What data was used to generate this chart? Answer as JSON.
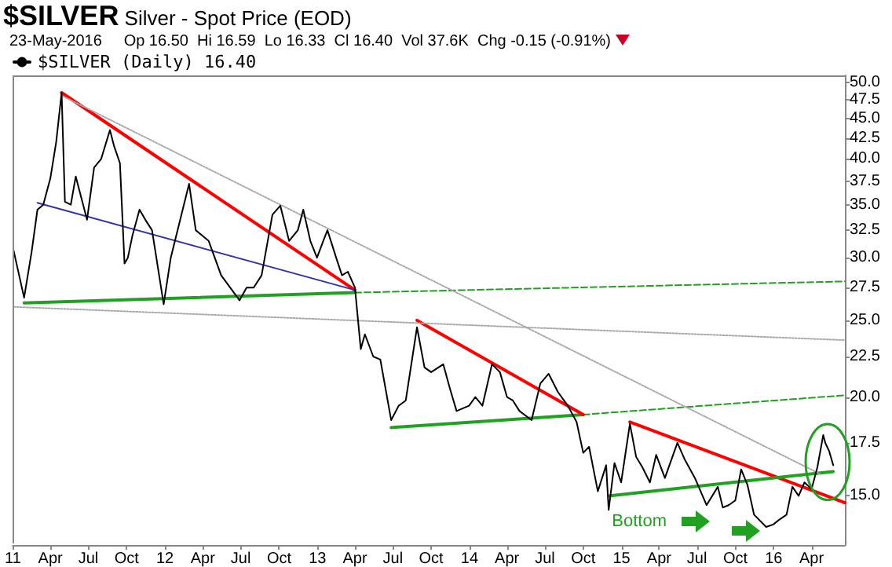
{
  "chart_data": {
    "type": "line",
    "title": "$SILVER Silver - Spot Price (EOD)",
    "subtitle": "23-May-2016     Op 16.50  Hi 16.59  Lo 16.33  Cl 16.40  Vol 37.6K  Chg -0.15 (-0.91%)",
    "log": true,
    "grid": false,
    "legend": "top left",
    "marker": "none",
    "ylim": [
      13.0,
      51
    ],
    "yticks": [
      {
        "value": 15,
        "label": "15.0"
      },
      17.5,
      {
        "value": 20,
        "label": "20.0"
      },
      22.5,
      {
        "value": 25,
        "label": "25.0"
      },
      27.5,
      {
        "value": 30,
        "label": "30.0"
      },
      32.5,
      {
        "value": 35,
        "label": "35.0"
      },
      37.5,
      {
        "value": 40,
        "label": "40.0"
      },
      42.5,
      {
        "value": 45,
        "label": "45.0"
      },
      47.5,
      {
        "value": 50,
        "label": "50.0"
      }
    ],
    "xlim": [
      "2011-01-01",
      "2016-06-20"
    ],
    "xticks": [
      {
        "value": "2011-01-01",
        "label": "11"
      },
      {
        "value": "2011-04-01",
        "label": "Apr"
      },
      {
        "value": "2011-07-01",
        "label": "Jul"
      },
      {
        "value": "2011-10-01",
        "label": "Oct"
      },
      {
        "value": "2012-01-01",
        "label": "12"
      },
      {
        "value": "2012-04-01",
        "label": "Apr"
      },
      {
        "value": "2012-07-01",
        "label": "Jul"
      },
      {
        "value": "2012-10-01",
        "label": "Oct"
      },
      {
        "value": "2013-01-01",
        "label": "13"
      },
      {
        "value": "2013-04-01",
        "label": "Apr"
      },
      {
        "value": "2013-07-01",
        "label": "Jul"
      },
      {
        "value": "2013-10-01",
        "label": "Oct"
      },
      {
        "value": "2014-01-01",
        "label": "14"
      },
      {
        "value": "2014-04-01",
        "label": "Apr"
      },
      {
        "value": "2014-07-01",
        "label": "Jul"
      },
      {
        "value": "2014-10-01",
        "label": "Oct"
      },
      {
        "value": "2015-01-01",
        "label": "15"
      },
      {
        "value": "2015-04-01",
        "label": "Apr"
      },
      {
        "value": "2015-07-01",
        "label": "Jul"
      },
      {
        "value": "2015-10-01",
        "label": "Oct"
      },
      {
        "value": "2016-01-01",
        "label": "16"
      },
      {
        "value": "2016-04-01",
        "label": "Apr"
      }
    ],
    "annotations": [
      "Bottom"
    ],
    "series": [
      {
        "name": "$SILVER (Daily) 16.40",
        "color": "#000000",
        "x": [
          "2011-01-03",
          "2011-01-28",
          "2011-02-15",
          "2011-03-01",
          "2011-03-15",
          "2011-04-01",
          "2011-04-15",
          "2011-04-28",
          "2011-05-06",
          "2011-05-20",
          "2011-06-01",
          "2011-06-28",
          "2011-07-15",
          "2011-08-01",
          "2011-08-22",
          "2011-09-01",
          "2011-09-15",
          "2011-09-26",
          "2011-10-04",
          "2011-10-15",
          "2011-11-01",
          "2011-11-15",
          "2011-12-01",
          "2011-12-29",
          "2012-01-15",
          "2012-02-28",
          "2012-03-15",
          "2012-04-15",
          "2012-05-15",
          "2012-06-28",
          "2012-07-15",
          "2012-08-01",
          "2012-08-20",
          "2012-09-15",
          "2012-10-04",
          "2012-10-25",
          "2012-11-15",
          "2012-11-28",
          "2012-12-15",
          "2012-12-31",
          "2013-01-15",
          "2013-01-25",
          "2013-02-15",
          "2013-03-01",
          "2013-03-15",
          "2013-04-01",
          "2013-04-15",
          "2013-04-25",
          "2013-05-15",
          "2013-06-01",
          "2013-06-27",
          "2013-07-15",
          "2013-08-01",
          "2013-08-28",
          "2013-09-15",
          "2013-10-01",
          "2013-10-30",
          "2013-11-15",
          "2013-12-01",
          "2013-12-31",
          "2014-01-15",
          "2014-02-01",
          "2014-02-24",
          "2014-03-15",
          "2014-04-01",
          "2014-04-15",
          "2014-05-01",
          "2014-05-30",
          "2014-06-20",
          "2014-07-10",
          "2014-08-01",
          "2014-08-25",
          "2014-09-15",
          "2014-10-01",
          "2014-10-15",
          "2014-11-05",
          "2014-11-25",
          "2014-12-01",
          "2014-12-15",
          "2014-12-31",
          "2015-01-21",
          "2015-02-05",
          "2015-02-20",
          "2015-03-10",
          "2015-03-25",
          "2015-04-15",
          "2015-05-15",
          "2015-06-01",
          "2015-06-26",
          "2015-07-24",
          "2015-08-20",
          "2015-09-01",
          "2015-09-15",
          "2015-10-01",
          "2015-10-15",
          "2015-10-30",
          "2015-11-15",
          "2015-12-14",
          "2015-12-31",
          "2016-01-15",
          "2016-02-01",
          "2016-02-15",
          "2016-03-01",
          "2016-03-15",
          "2016-04-01",
          "2016-04-15",
          "2016-04-29",
          "2016-05-04",
          "2016-05-13",
          "2016-05-23"
        ],
        "values": [
          30.6,
          26.7,
          30.5,
          34.5,
          35,
          37.8,
          42,
          48.5,
          35.3,
          35,
          38,
          33.5,
          39,
          40,
          43.5,
          41.5,
          39.5,
          29.5,
          30,
          32,
          34.5,
          33.5,
          32.5,
          26.2,
          30,
          37.2,
          32.5,
          31.5,
          28.5,
          26.5,
          27.5,
          27.5,
          28.5,
          34,
          34.9,
          31.5,
          32.5,
          34.5,
          31.5,
          30,
          31.5,
          32.5,
          30,
          28.5,
          28.8,
          27.5,
          23,
          24,
          22.5,
          22.3,
          18.7,
          19.5,
          19.8,
          24.5,
          21.8,
          21.5,
          22,
          20.5,
          19.2,
          19.5,
          20,
          19.5,
          22,
          21.5,
          20,
          19.8,
          19.2,
          18.7,
          20.8,
          21.4,
          20.3,
          19.5,
          18.6,
          17,
          17.3,
          15.2,
          16.4,
          14.4,
          16.5,
          15.6,
          18.5,
          16.8,
          16.3,
          15.6,
          16.9,
          15.8,
          17.5,
          16.7,
          15.8,
          14.6,
          15.4,
          14.5,
          14.6,
          14.8,
          16.2,
          15.5,
          14.2,
          13.7,
          13.8,
          14,
          14.2,
          15.4,
          15,
          15.6,
          15.3,
          16.3,
          17.9,
          17.5,
          17.1,
          16.4
        ]
      },
      {
        "color": "#ff0000",
        "x": [
          "2011-04-28",
          "2013-04-01"
        ],
        "values": [
          48.5,
          27.3
        ]
      },
      {
        "color": "#3333aa",
        "x": [
          "2011-03-01",
          "2013-04-01"
        ],
        "values": [
          35.2,
          27.3
        ]
      },
      {
        "color": "#22a022",
        "x": [
          "2011-01-28",
          "2013-04-01"
        ],
        "values": [
          26.3,
          27.1
        ]
      },
      {
        "color": "#22a022",
        "x": [
          "2013-04-01",
          "2016-06-20"
        ],
        "values": [
          27.1,
          28.0
        ],
        "line_style": "dashed"
      },
      {
        "color": "#22a022",
        "x": [
          "2013-06-27",
          "2014-10-01"
        ],
        "values": [
          18.3,
          19.0
        ]
      },
      {
        "color": "#22a022",
        "x": [
          "2014-10-01",
          "2016-06-20"
        ],
        "values": [
          19.0,
          20.1
        ],
        "line_style": "dashed"
      },
      {
        "color": "#ff0000",
        "x": [
          "2013-08-28",
          "2014-10-01"
        ],
        "values": [
          25.0,
          19.0
        ]
      },
      {
        "color": "#ff0000",
        "x": [
          "2015-01-21",
          "2016-06-20"
        ],
        "values": [
          18.6,
          14.7
        ]
      },
      {
        "color": "#22a022",
        "x": [
          "2014-12-01",
          "2016-05-23"
        ],
        "values": [
          15.0,
          16.1
        ]
      },
      {
        "color": "#aaaaaa",
        "x": [
          "2011-05-01",
          "2016-04-20"
        ],
        "values": [
          48.0,
          16.0
        ],
        "line_style": "dotted"
      },
      {
        "color": "#aaaaaa",
        "x": [
          "2011-01-03",
          "2016-06-20"
        ],
        "values": [
          26.0,
          23.6
        ],
        "line_style": "dotted"
      }
    ]
  }
}
